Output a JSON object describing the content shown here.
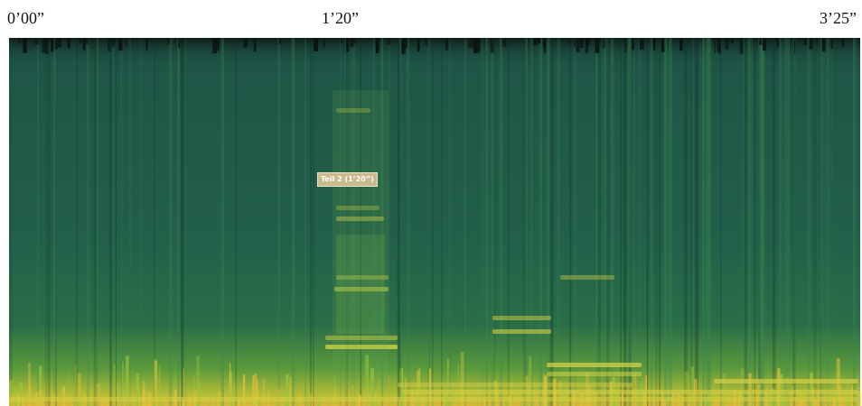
{
  "time_labels": [
    "0’00”",
    "1’20”",
    "3’25”"
  ],
  "annotation": "Teil 2 (1’20”)"
}
